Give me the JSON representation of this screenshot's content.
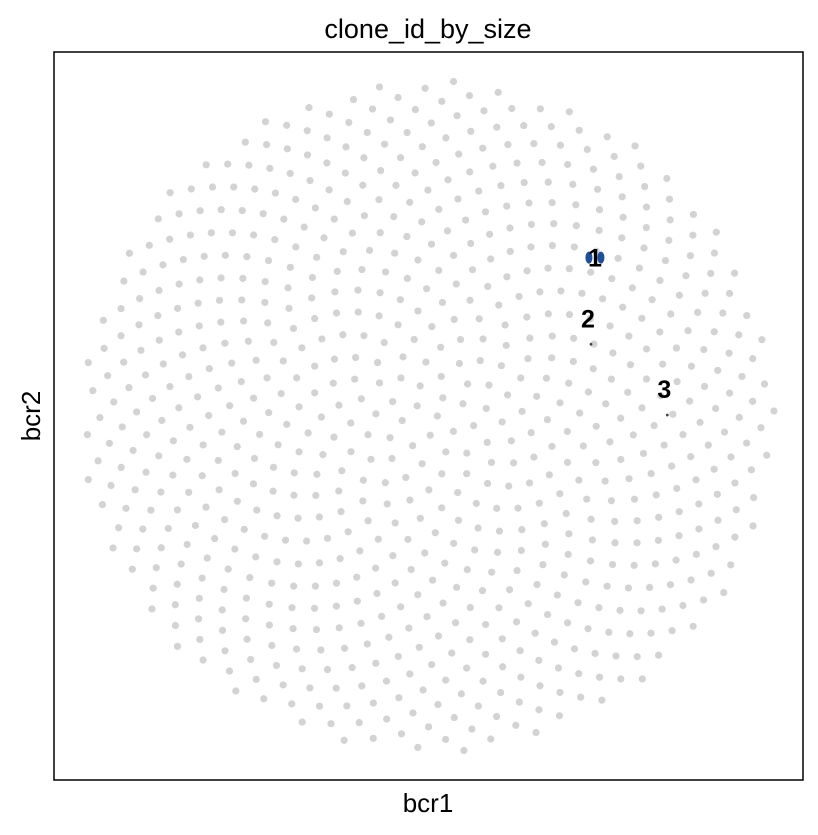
{
  "chart_data": {
    "type": "scatter",
    "title": "clone_id_by_size",
    "xlabel": "bcr1",
    "ylabel": "bcr2",
    "xlim": [
      -1.08,
      1.08
    ],
    "ylim": [
      -1.08,
      1.08
    ],
    "grid": false,
    "legend": "none",
    "background_points": {
      "pattern": "phyllotaxis disk",
      "count": 760,
      "radius": 1.0,
      "color": "#d3d3d3"
    },
    "highlighted": [
      {
        "label": "1",
        "x": 0.48,
        "y": 0.47,
        "color": "#1f4e9a"
      },
      {
        "label": "2",
        "x": 0.46,
        "y": 0.29,
        "color": "#444444"
      },
      {
        "label": "3",
        "x": 0.68,
        "y": 0.08,
        "color": "#444444"
      }
    ]
  }
}
